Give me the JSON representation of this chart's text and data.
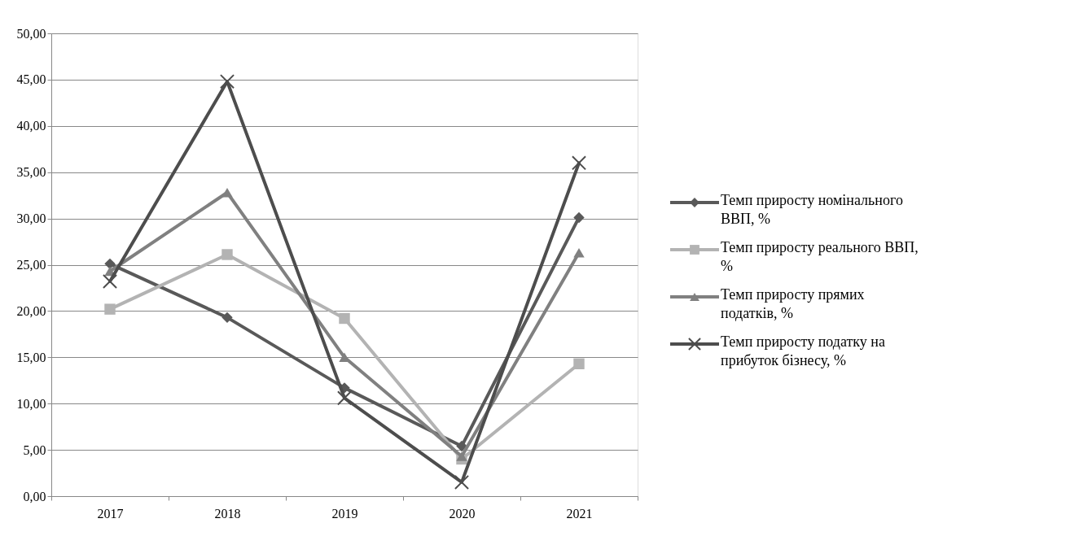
{
  "chart_data": {
    "type": "line",
    "categories": [
      "2017",
      "2018",
      "2019",
      "2020",
      "2021"
    ],
    "ylim": [
      0,
      50
    ],
    "yticks": [
      {
        "value": 0,
        "label": "0,00"
      },
      {
        "value": 5,
        "label": "5,00"
      },
      {
        "value": 10,
        "label": "10,00"
      },
      {
        "value": 15,
        "label": "15,00"
      },
      {
        "value": 20,
        "label": "20,00"
      },
      {
        "value": 25,
        "label": "25,00"
      },
      {
        "value": 30,
        "label": "30,00"
      },
      {
        "value": 35,
        "label": "35,00"
      },
      {
        "value": 40,
        "label": "40,00"
      },
      {
        "value": 45,
        "label": "45,00"
      },
      {
        "value": 50,
        "label": "50,00"
      }
    ],
    "grid": "y",
    "legend": "right",
    "series": [
      {
        "name": "Темп приросту номінального ВВП, %",
        "color": "#595959",
        "marker": "diamond",
        "values": [
          25.1,
          19.3,
          11.7,
          5.4,
          30.1
        ]
      },
      {
        "name": "Темп приросту реального ВВП, %",
        "color": "#b3b3b3",
        "marker": "square",
        "values": [
          20.2,
          26.1,
          19.2,
          4.0,
          14.3
        ]
      },
      {
        "name": "Темп приросту прямих податків, %",
        "color": "#808080",
        "marker": "triangle",
        "values": [
          24.3,
          32.8,
          15.0,
          4.3,
          26.3
        ]
      },
      {
        "name": "Темп приросту податку на прибуток бізнесу, %",
        "color": "#4d4d4d",
        "marker": "cross",
        "values": [
          23.2,
          44.8,
          10.6,
          1.5,
          36.0
        ]
      }
    ]
  }
}
